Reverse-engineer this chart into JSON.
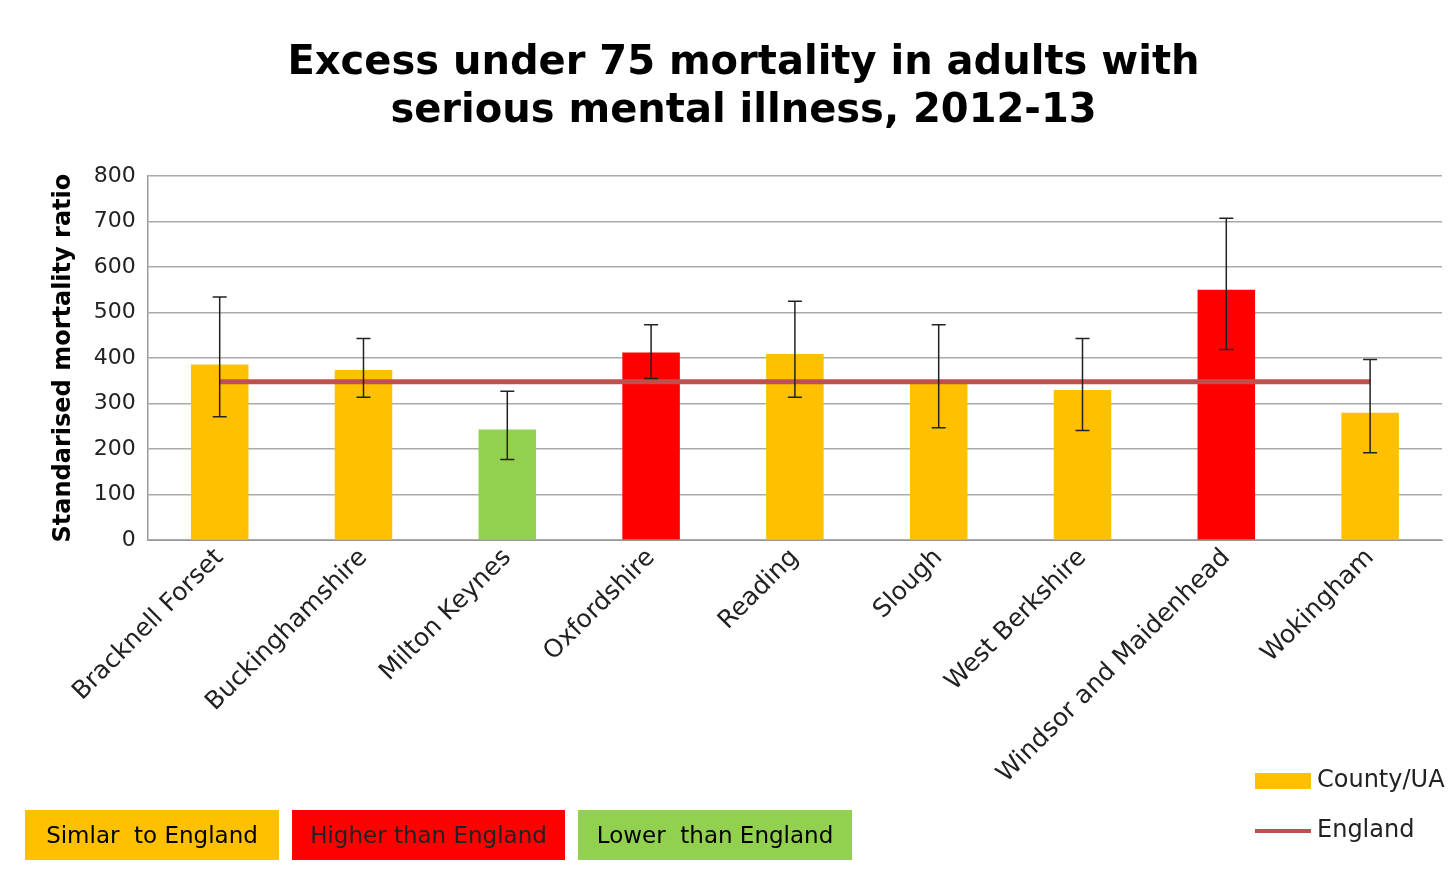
{
  "chart_data": {
    "type": "bar",
    "title": "Excess under 75 mortality in adults with serious mental illness, 2012-13",
    "ylabel": "Standarised mortality ratio",
    "categories": [
      "Bracknell Forset",
      "Buckinghamshire",
      "Milton Keynes",
      "Oxfordshire",
      "Reading",
      "Slough",
      "West Berkshire",
      "Windsor and Maidenhead",
      "Wokingham"
    ],
    "series": [
      {
        "name": "County/UA",
        "color": "#ffc000",
        "colors": [
          "#ffc000",
          "#ffc000",
          "#92d050",
          "#ff0000",
          "#ffc000",
          "#ffc000",
          "#ffc000",
          "#ff0000",
          "#ffc000"
        ],
        "values": [
          386,
          374,
          243,
          412,
          409,
          348,
          330,
          550,
          280
        ],
        "errors": [
          [
            271,
            534
          ],
          [
            314,
            443
          ],
          [
            177,
            327
          ],
          [
            355,
            473
          ],
          [
            314,
            525
          ],
          [
            247,
            473
          ],
          [
            241,
            443
          ],
          [
            419,
            707
          ],
          [
            192,
            397
          ]
        ]
      },
      {
        "name": "England",
        "type": "line",
        "color": "#c0504d",
        "values": [
          348,
          348,
          348,
          348,
          348,
          348,
          348,
          348,
          348
        ]
      }
    ],
    "ylim": [
      0,
      800
    ],
    "yticks": [
      0,
      100,
      200,
      300,
      400,
      500,
      600,
      700,
      800
    ],
    "grid": "y",
    "legend": "bottom right",
    "marker": "none",
    "annotations": [
      "Simlar  to England",
      "Higher than England",
      "Lower  than England"
    ]
  }
}
